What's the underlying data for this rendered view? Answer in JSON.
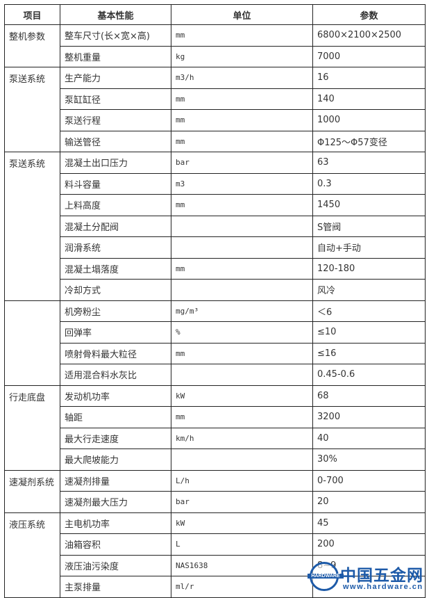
{
  "headers": [
    "项目",
    "基本性能",
    "单位",
    "参数"
  ],
  "groups": [
    {
      "name": "整机参数",
      "rows": [
        [
          "整车尺寸(长×宽×高)",
          "mm",
          "6800×2100×2500"
        ],
        [
          "整机重量",
          "kg",
          "7000"
        ]
      ]
    },
    {
      "name": "泵送系统",
      "rows": [
        [
          "生产能力",
          "m3/h",
          "16"
        ],
        [
          "泵缸缸径",
          "mm",
          "140"
        ],
        [
          "泵送行程",
          "mm",
          "1000"
        ],
        [
          "输送管径",
          "mm",
          "Φ125～Φ57变径"
        ]
      ]
    },
    {
      "name": "泵送系统",
      "rows": [
        [
          "混凝土出口压力",
          "bar",
          "63"
        ],
        [
          "料斗容量",
          "m3",
          "0.3"
        ],
        [
          "上料高度",
          "mm",
          "1450"
        ],
        [
          "混凝土分配阀",
          "",
          "S管阀"
        ],
        [
          "润滑系统",
          "",
          "自动+手动"
        ],
        [
          "混凝土塌落度",
          "mm",
          "120-180"
        ],
        [
          "冷却方式",
          "",
          "风冷"
        ]
      ]
    },
    {
      "name": "",
      "rows": [
        [
          "机旁粉尘",
          "mg/m³",
          "＜6"
        ],
        [
          "回弹率",
          "%",
          "≤10"
        ],
        [
          "喷射骨料最大粒径",
          "mm",
          "≤16"
        ],
        [
          "适用混合料水灰比",
          "",
          "0.45-0.6"
        ]
      ]
    },
    {
      "name": "行走底盘",
      "rows": [
        [
          "发动机功率",
          "kW",
          "68"
        ],
        [
          "轴距",
          "mm",
          "3200"
        ],
        [
          "最大行走速度",
          "km/h",
          "40"
        ],
        [
          "最大爬坡能力",
          "",
          "30%"
        ]
      ]
    },
    {
      "name": "速凝剂系统",
      "rows": [
        [
          "速凝剂排量",
          "L/h",
          "0-700"
        ],
        [
          "速凝剂最大压力",
          "bar",
          "20"
        ]
      ]
    },
    {
      "name": "液压系统",
      "rows": [
        [
          "主电机功率",
          "kW",
          "45"
        ],
        [
          "油箱容积",
          "L",
          "200"
        ],
        [
          "液压油污染度",
          "NAS1638",
          "8~9"
        ],
        [
          "主泵排量",
          "ml/r",
          ""
        ]
      ]
    }
  ],
  "watermark": {
    "badge": "HARDWARE",
    "name": "中国五金网",
    "url": "www.hardware.cn",
    "color": "#1d5aa8"
  }
}
